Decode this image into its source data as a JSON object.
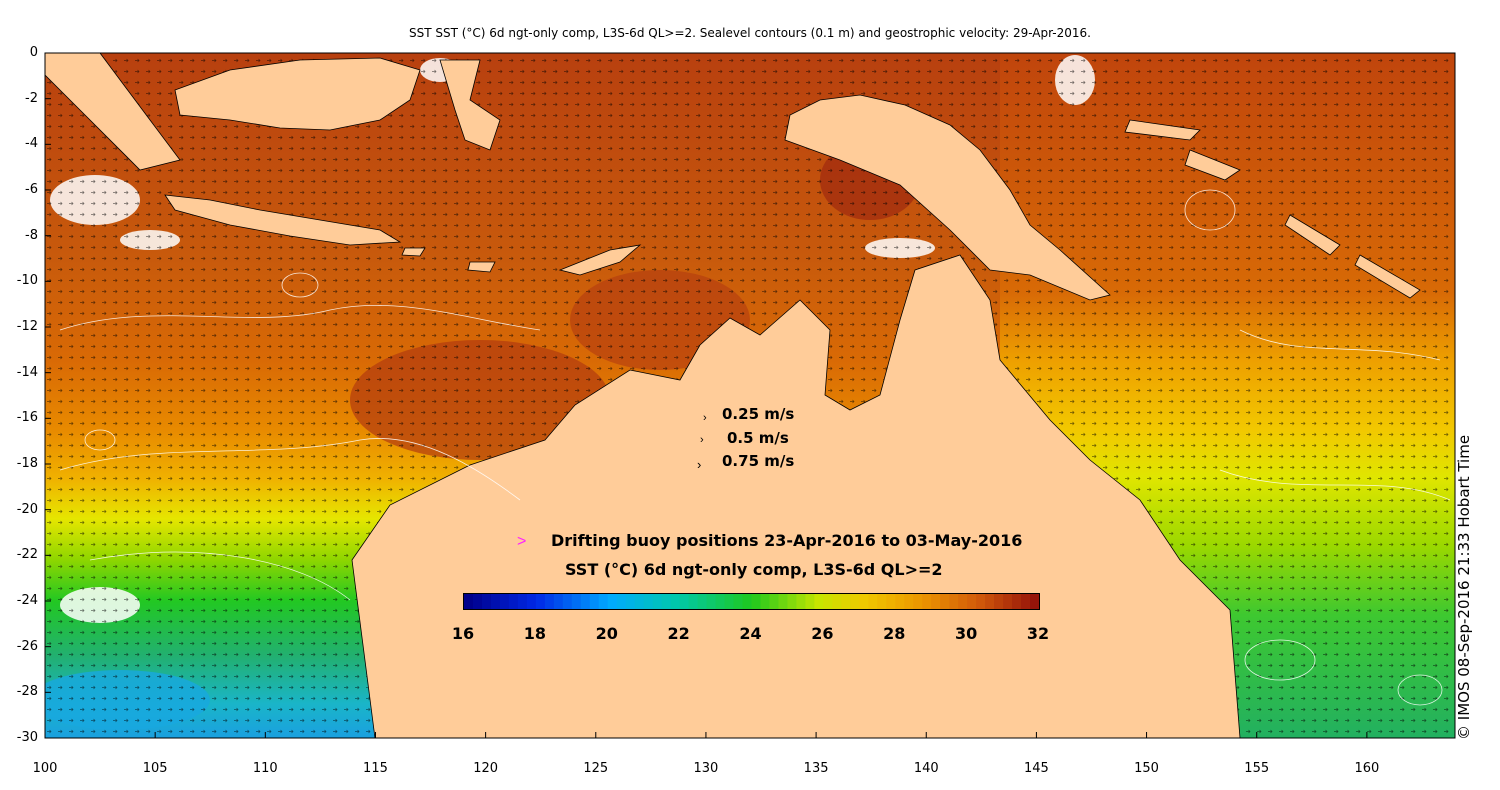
{
  "title": "SST SST (°C) 6d ngt-only comp, L3S-6d QL>=2. Sealevel contours (0.1 m) and geostrophic velocity: 29-Apr-2016.",
  "axes": {
    "x_ticks": [
      "100",
      "105",
      "110",
      "115",
      "120",
      "125",
      "130",
      "135",
      "140",
      "145",
      "150",
      "155",
      "160"
    ],
    "y_ticks": [
      "0",
      "-2",
      "-4",
      "-6",
      "-8",
      "-10",
      "-12",
      "-14",
      "-16",
      "-18",
      "-20",
      "-22",
      "-24",
      "-26",
      "-28",
      "-30"
    ],
    "x_range": [
      100,
      164
    ],
    "y_range": [
      -30,
      0
    ]
  },
  "velocity_legend": [
    {
      "label": "0.25 m/s",
      "speed": 0.25
    },
    {
      "label": "0.5 m/s",
      "speed": 0.5
    },
    {
      "label": "0.75 m/s",
      "speed": 0.75
    }
  ],
  "buoy_legend": {
    "icon": "magenta-arrow-icon",
    "label": "Drifting buoy positions 23-Apr-2016 to 03-May-2016",
    "color": "#ff22ff"
  },
  "colorbar": {
    "title": "SST (°C) 6d ngt-only comp, L3S-6d QL>=2",
    "ticks": [
      "16",
      "18",
      "20",
      "22",
      "24",
      "26",
      "28",
      "30",
      "32"
    ],
    "range": [
      16,
      32
    ]
  },
  "credit": "© IMOS 08-Sep-2016 21:33 Hobart Time",
  "colors": {
    "land": "#ffcc99",
    "no_data": "#ffffff",
    "contour": "#ffffff"
  }
}
